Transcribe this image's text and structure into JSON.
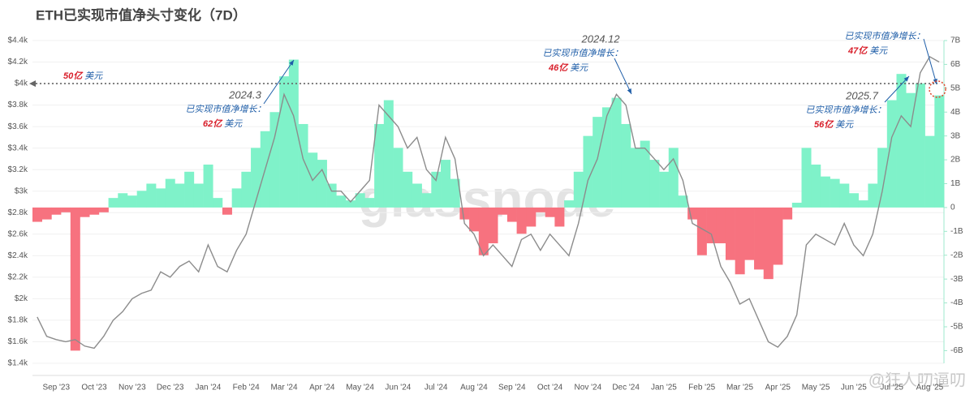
{
  "chart_data": {
    "type": "bar-line",
    "title": "ETH已实现市值净头寸变化（7D）",
    "categories": [
      null,
      null,
      "Sep '23",
      null,
      null,
      null,
      "Oct '23",
      null,
      null,
      null,
      "Nov '23",
      null,
      null,
      null,
      "Dec '23",
      null,
      null,
      null,
      "Jan '24",
      null,
      null,
      null,
      "Feb '24",
      null,
      null,
      null,
      "Mar '24",
      null,
      null,
      null,
      "Apr '24",
      null,
      null,
      null,
      "May '24",
      null,
      null,
      null,
      "Jun '24",
      null,
      null,
      null,
      "Jul '24",
      null,
      null,
      null,
      "Aug '24",
      null,
      null,
      null,
      "Sep '24",
      null,
      null,
      null,
      "Oct '24",
      null,
      null,
      null,
      "Nov '24",
      null,
      null,
      null,
      "Dec '24",
      null,
      null,
      null,
      "Jan '25",
      null,
      null,
      null,
      "Feb '25",
      null,
      null,
      null,
      "Mar '25",
      null,
      null,
      null,
      "Apr '25",
      null,
      null,
      null,
      "May '25",
      null,
      null,
      null,
      "Jun '25",
      null,
      null,
      null,
      "Jul '25",
      null,
      null,
      null,
      "Aug '25",
      null
    ],
    "series": [
      {
        "color": "#8c8c8c",
        "axis": "y",
        "values": [
          1830,
          1650,
          1620,
          1600,
          1620,
          1560,
          1540,
          1650,
          1800,
          1880,
          2000,
          2050,
          2080,
          2250,
          2200,
          2300,
          2350,
          2250,
          2500,
          2300,
          2250,
          2450,
          2600,
          2900,
          3200,
          3500,
          3900,
          3700,
          3300,
          3100,
          3200,
          3000,
          3000,
          2900,
          3000,
          3100,
          3800,
          3700,
          3600,
          3400,
          3500,
          3200,
          3100,
          3500,
          3300,
          2700,
          2600,
          2400,
          2500,
          2400,
          2300,
          2550,
          2600,
          2450,
          2600,
          2500,
          2400,
          2700,
          3100,
          3300,
          3700,
          3900,
          3800,
          3400,
          3400,
          3300,
          3200,
          3300,
          3100,
          2700,
          2650,
          2600,
          2300,
          2150,
          1950,
          2000,
          1800,
          1600,
          1550,
          1650,
          1850,
          2500,
          2600,
          2550,
          2500,
          2700,
          2500,
          2400,
          2600,
          3000,
          3500,
          3700,
          3600,
          4100,
          4250,
          4200
        ]
      },
      {
        "color": "#7ff2c9",
        "negative_color": "#f7727f",
        "axis": "y2",
        "values": [
          -0.6,
          -0.5,
          -0.3,
          -0.2,
          -6.0,
          -0.4,
          -0.3,
          -0.2,
          0.4,
          0.6,
          0.5,
          0.7,
          1.0,
          0.8,
          1.2,
          1.0,
          1.5,
          1.0,
          1.8,
          0.4,
          -0.3,
          0.8,
          1.5,
          2.5,
          3.2,
          4.0,
          5.5,
          6.2,
          3.5,
          2.3,
          2.0,
          1.0,
          0.5,
          0.3,
          0.6,
          0.4,
          3.5,
          4.5,
          2.5,
          1.5,
          1.0,
          0.6,
          1.5,
          2.0,
          1.2,
          -0.5,
          -1.0,
          -2.0,
          -1.5,
          -0.3,
          -0.6,
          -1.1,
          -0.8,
          -0.2,
          -0.4,
          -0.8,
          0.3,
          1.5,
          3.0,
          3.8,
          4.2,
          4.6,
          3.5,
          2.5,
          2.8,
          2.0,
          1.5,
          2.5,
          0.5,
          -0.5,
          -2.0,
          -1.5,
          -1.5,
          -2.2,
          -2.8,
          -2.2,
          -2.6,
          -3.0,
          -2.4,
          -0.5,
          0.2,
          2.5,
          1.8,
          1.3,
          1.2,
          1.0,
          0.6,
          0.3,
          1.0,
          2.5,
          4.5,
          5.6,
          4.8,
          5.2,
          3.0,
          4.7
        ]
      }
    ],
    "ylim": [
      1400,
      4400
    ],
    "yticks": [
      {
        "value": 1400,
        "label": "$1.4k"
      },
      {
        "value": 1600,
        "label": "$1.6k"
      },
      {
        "value": 1800,
        "label": "$1.8k"
      },
      {
        "value": 2000,
        "label": "$2k"
      },
      {
        "value": 2200,
        "label": "$2.2k"
      },
      {
        "value": 2400,
        "label": "$2.4k"
      },
      {
        "value": 2600,
        "label": "$2.6k"
      },
      {
        "value": 2800,
        "label": "$2.8k"
      },
      {
        "value": 3000,
        "label": "$3k"
      },
      {
        "value": 3200,
        "label": "$3.2k"
      },
      {
        "value": 3400,
        "label": "$3.4k"
      },
      {
        "value": 3600,
        "label": "$3.6k"
      },
      {
        "value": 3800,
        "label": "$3.8k"
      },
      {
        "value": 4000,
        "label": "$4k"
      },
      {
        "value": 4200,
        "label": "$4.2k"
      },
      {
        "value": 4400,
        "label": "$4.4k"
      }
    ],
    "y2lim": [
      -6.53,
      7
    ],
    "y2ticks": [
      {
        "value": -6,
        "label": "-6B"
      },
      {
        "value": -5,
        "label": "-5B"
      },
      {
        "value": -4,
        "label": "-4B"
      },
      {
        "value": -3,
        "label": "-3B"
      },
      {
        "value": -2,
        "label": "-2B"
      },
      {
        "value": -1,
        "label": "-1B"
      },
      0,
      {
        "value": 1,
        "label": "1B"
      },
      {
        "value": 2,
        "label": "2B"
      },
      {
        "value": 3,
        "label": "3B"
      },
      {
        "value": 4,
        "label": "4B"
      },
      {
        "value": 5,
        "label": "5B"
      },
      {
        "value": 6,
        "label": "6B"
      },
      {
        "value": 7,
        "label": "7B"
      }
    ],
    "grid": true,
    "reference_line": {
      "value": 4000,
      "amount": "50亿",
      "unit": "美元"
    },
    "annotations": [
      {
        "date": "2024.3",
        "label": "已实现市值净增长：",
        "amount": "62亿",
        "unit": "美元"
      },
      {
        "date": "2024.12",
        "label": "已实现市值净增长：",
        "amount": "46亿",
        "unit": "美元"
      },
      {
        "date": "2025.7",
        "label": "已实现市值净增长：",
        "amount": "56亿",
        "unit": "美元"
      },
      {
        "label": "已实现市值净增长：",
        "amount": "47亿",
        "unit": "美元"
      }
    ],
    "watermarks": [
      "glassnode",
      "@狂人叨逼叨"
    ]
  }
}
